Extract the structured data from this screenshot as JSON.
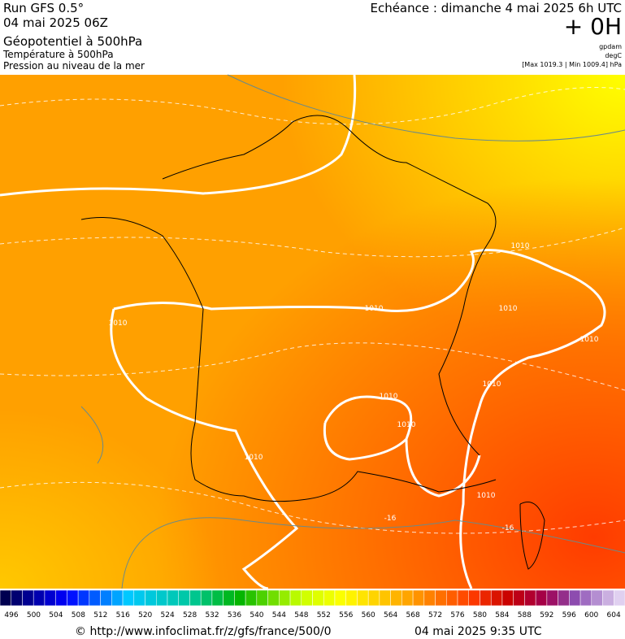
{
  "header": {
    "run": "Run GFS 0.5°",
    "date": "04 mai 2025 06Z",
    "fields": [
      "Géopotentiel à 500hPa",
      "Température à 500hPa",
      "Pression au niveau de la mer"
    ],
    "echeance": "Echéance : dimanche 4 mai 2025 6h UTC",
    "offset": "+ 0H",
    "units": [
      "gpdam",
      "degC",
      "[Max 1019.3 | Min 1009.4] hPa"
    ]
  },
  "map": {
    "contour_labels": [
      "1010",
      "1010",
      "1010",
      "1010",
      "1010",
      "1010",
      "1010",
      "1010",
      "1010",
      "1010",
      "-16",
      "-16"
    ]
  },
  "colorbar": {
    "labels": [
      496,
      500,
      504,
      508,
      512,
      516,
      520,
      524,
      528,
      532,
      536,
      540,
      544,
      548,
      552,
      556,
      560,
      564,
      568,
      572,
      576,
      580,
      584,
      588,
      592,
      596,
      600,
      604
    ]
  },
  "footer": {
    "url": "© http://www.infoclimat.fr/z/gfs/france/500/0",
    "timestamp": "04 mai 2025  9:35 UTC"
  }
}
